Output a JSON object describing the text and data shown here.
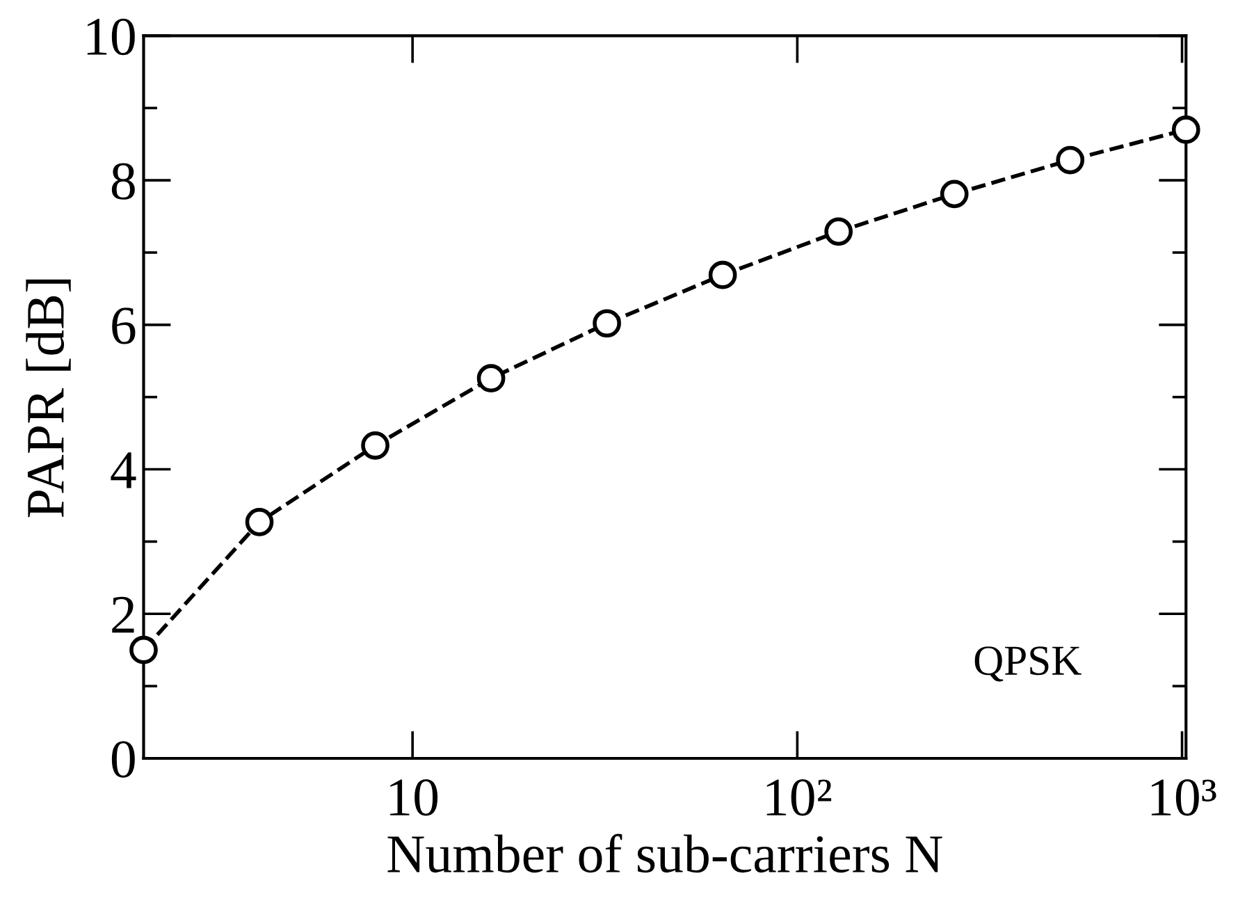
{
  "chart_data": {
    "type": "line",
    "xlabel": "Number of sub-carriers N",
    "ylabel": "PAPR [dB]",
    "annotations": [
      "QPSK"
    ],
    "log": "x",
    "xlim": [
      2,
      1024
    ],
    "xticks": [
      {
        "value": 10,
        "label": "10"
      },
      {
        "value": 100,
        "label": "10²"
      },
      {
        "value": 1000,
        "label": "10³"
      }
    ],
    "ylim": [
      0,
      10
    ],
    "yticks": [
      0,
      {
        "value": 1,
        "label": null
      },
      2,
      {
        "value": 3,
        "label": null
      },
      4,
      {
        "value": 5,
        "label": null
      },
      6,
      {
        "value": 7,
        "label": null
      },
      8,
      {
        "value": 9,
        "label": null
      },
      10
    ],
    "x": [
      2,
      4,
      8,
      16,
      32,
      64,
      128,
      256,
      512,
      1024
    ],
    "series": [
      {
        "color": "#000000",
        "values": [
          1.5,
          3.27,
          4.33,
          5.26,
          6.02,
          6.69,
          7.29,
          7.81,
          8.28,
          8.7
        ]
      }
    ],
    "marker": "circle",
    "line_style": "dashed",
    "grid": false,
    "legend": false
  }
}
